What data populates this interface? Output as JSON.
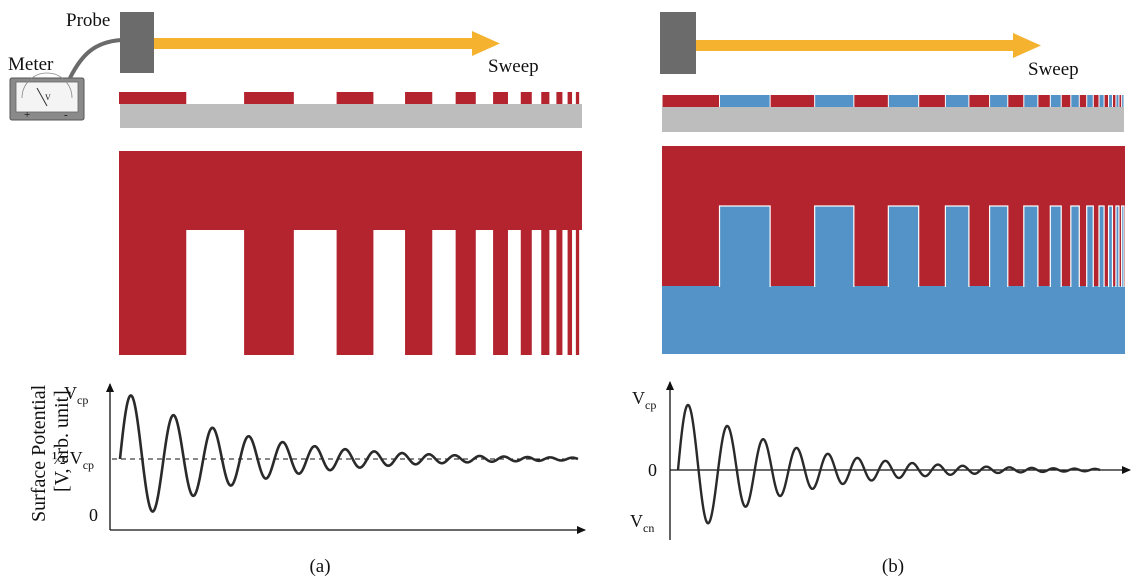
{
  "colors": {
    "conductor_red": "#b3242e",
    "conductor_blue": "#5393c7",
    "substrate": "#bdbdbd",
    "probe": "#6b6b6b",
    "sweep_arrow": "#f5b22f",
    "meter_body": "#8a8a8a",
    "curve": "#2a2a2a"
  },
  "icons": {
    "meter": "analog-voltmeter-icon",
    "probe": "kelvin-probe-block"
  },
  "panel_a": {
    "caption": "(a)",
    "probe_label": "Probe",
    "meter_label": "Meter",
    "meter_plus": "+",
    "meter_minus": "-",
    "meter_v": "V",
    "sweep_label": "Sweep",
    "y_axis_title": "Surface Potential",
    "y_axis_unit": "[V, arb. unit]",
    "tick_top": "V",
    "tick_top_sub": "cp",
    "tick_mid_prefix": "½ V",
    "tick_mid_sub": "cp",
    "tick_bottom": "0"
  },
  "panel_b": {
    "caption": "(b)",
    "sweep_label": "Sweep",
    "tick_top": "V",
    "tick_top_sub": "cp",
    "tick_mid": "0",
    "tick_bottom": "V",
    "tick_bottom_sub": "cn"
  }
}
